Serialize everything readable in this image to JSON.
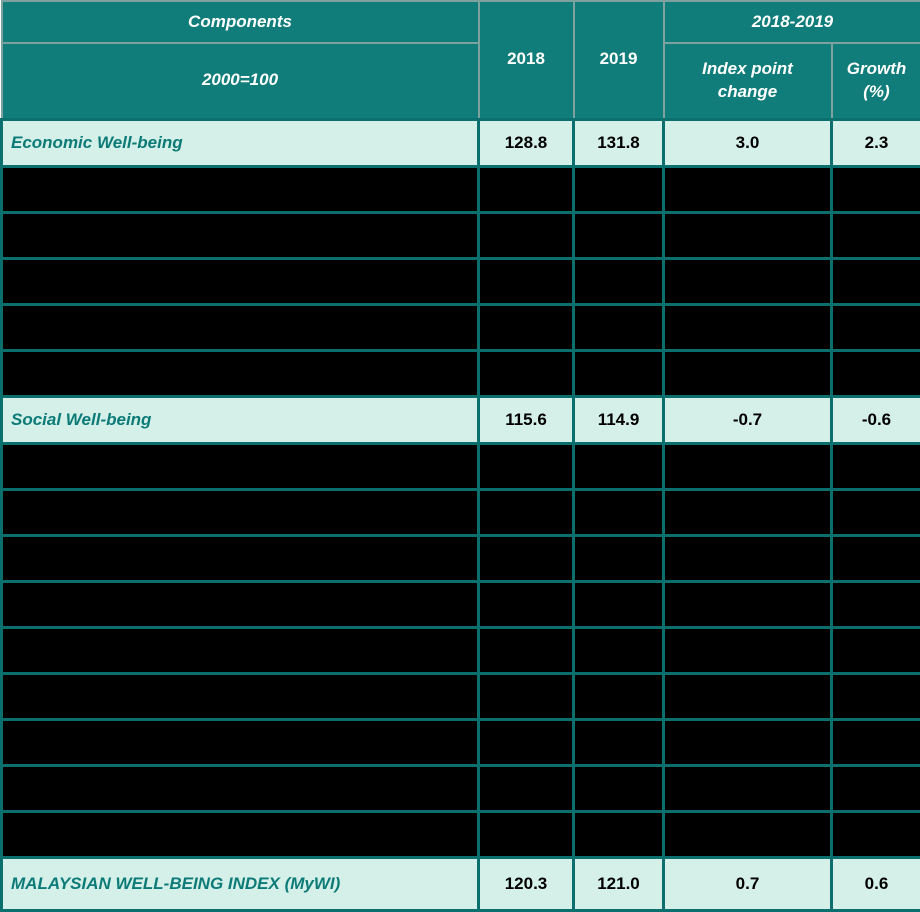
{
  "table": {
    "header": {
      "components": "Components",
      "base_index": "2000=100",
      "year_2018": "2018",
      "year_2019": "2019",
      "period": "2018-2019",
      "index_point_change": "Index point change",
      "growth_percent": "Growth (%)"
    },
    "rows": [
      {
        "type": "data",
        "label": "Economic Well-being",
        "y2018": "128.8",
        "y2019": "131.8",
        "index_change": "3.0",
        "growth": "2.3"
      },
      {
        "type": "redacted"
      },
      {
        "type": "redacted"
      },
      {
        "type": "redacted"
      },
      {
        "type": "redacted"
      },
      {
        "type": "redacted"
      },
      {
        "type": "data",
        "label": "Social Well-being",
        "y2018": "115.6",
        "y2019": "114.9",
        "index_change": "-0.7",
        "growth": "-0.6"
      },
      {
        "type": "redacted"
      },
      {
        "type": "redacted"
      },
      {
        "type": "redacted"
      },
      {
        "type": "redacted"
      },
      {
        "type": "redacted"
      },
      {
        "type": "redacted"
      },
      {
        "type": "redacted"
      },
      {
        "type": "redacted"
      },
      {
        "type": "redacted"
      },
      {
        "type": "data-last",
        "label": "MALAYSIAN WELL-BEING INDEX (MyWI)",
        "y2018": "120.3",
        "y2019": "121.0",
        "index_change": "0.7",
        "growth": "0.6"
      }
    ],
    "colors": {
      "header_bg": "#117d7a",
      "header_border": "#7da19e",
      "header_text": "#ffffff",
      "row_bg": "#d5f0e8",
      "redacted_bg": "#000000",
      "grid_border": "#0b6f6d",
      "label_text": "#0c7b78",
      "value_text": "#000000"
    }
  },
  "chart_data": {
    "type": "table",
    "columns": [
      "Components (2000=100)",
      "2018",
      "2019",
      "2018-2019 Index point change",
      "2018-2019 Growth (%)"
    ],
    "rows": [
      [
        "Economic Well-being",
        128.8,
        131.8,
        3.0,
        2.3
      ],
      [
        "Social Well-being",
        115.6,
        114.9,
        -0.7,
        -0.6
      ],
      [
        "MALAYSIAN WELL-BEING INDEX (MyWI)",
        120.3,
        121.0,
        0.7,
        0.6
      ]
    ],
    "notes": "14 body rows are blacked out (redacted): 5 between Economic Well-being and Social Well-being, 9 between Social Well-being and the MyWI total row."
  }
}
